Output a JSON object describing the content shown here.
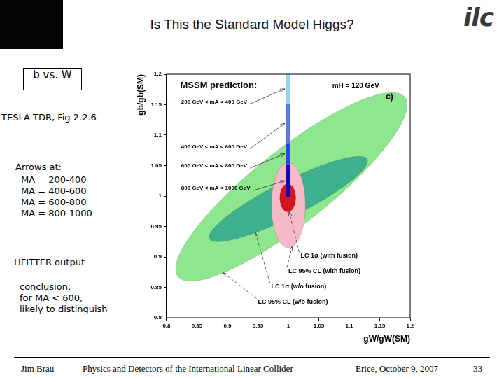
{
  "page": {
    "title": "Is This the Standard Model Higgs?",
    "logo_text": "ilc",
    "boxed_label": "b vs. W",
    "source": "TESLA TDR, Fig 2.2.6",
    "arrows_heading": "Arrows at:",
    "arrows": [
      "MA = 200-400",
      "MA = 400-600",
      "MA = 600-800",
      "MA = 800-1000"
    ],
    "output": "HFITTER output",
    "conclusion": [
      "conclusion:",
      "for MA < 600,",
      "likely to distinguish"
    ],
    "footer": {
      "left": "Jim Brau",
      "center": "Physics and Detectors of the International Linear Collider",
      "right": "Erice, October 9, 2007",
      "page": "33"
    }
  },
  "chart_data": {
    "type": "scatter",
    "x_label": "gW/gW(SM)",
    "y_label": "gb/gb(SM)",
    "xlim": [
      0.8,
      1.2
    ],
    "xticks": [
      0.8,
      0.85,
      0.9,
      0.95,
      1,
      1.05,
      1.1,
      1.15,
      1.2
    ],
    "ylim": [
      0.8,
      1.2
    ],
    "yticks": [
      0.8,
      0.85,
      0.9,
      0.95,
      1,
      1.05,
      1.1,
      1.15,
      1.2
    ],
    "grid": false,
    "annotations": [
      "MSSM prediction:",
      "mH = 120 GeV",
      "c)"
    ],
    "series": [
      {
        "name": "LC 95% CL (w/o fusion)",
        "type": "ellipse",
        "color": "#8ee68e",
        "x_center": 1.005,
        "y_center": 1.015,
        "x_halfwidth": 0.19,
        "y_halfwidth": 0.155,
        "correlation": 0.87
      },
      {
        "name": "LC 1σ (w/o fusion)",
        "type": "ellipse",
        "color": "#3fb08e",
        "x_center": 1.0,
        "y_center": 0.995,
        "x_halfwidth": 0.13,
        "y_halfwidth": 0.07,
        "correlation": 0.89
      },
      {
        "name": "LC 95% CL (with fusion)",
        "type": "ellipse",
        "color": "#f7b8c8",
        "x_center": 1.0,
        "y_center": 0.985,
        "x_halfwidth": 0.028,
        "y_halfwidth": 0.07,
        "correlation": 0
      },
      {
        "name": "LC 1σ (with fusion)",
        "type": "ellipse",
        "color": "#d4141e",
        "x_center": 0.999,
        "y_center": 0.997,
        "x_halfwidth": 0.013,
        "y_halfwidth": 0.023,
        "correlation": 0
      },
      {
        "name": "200 GeV < mA < 400 GeV",
        "type": "segment",
        "color": "#8fd3f0",
        "x": 1,
        "y_from": 1.152,
        "y_to": 1.2
      },
      {
        "name": "400 GeV < mA < 600 GeV",
        "type": "segment",
        "color": "#5a78e6",
        "x": 1,
        "y_from": 1.087,
        "y_to": 1.152
      },
      {
        "name": "600 GeV < mA < 800 GeV",
        "type": "segment",
        "color": "#2a44f0",
        "x": 1,
        "y_from": 1.052,
        "y_to": 1.087
      },
      {
        "name": "800 GeV < mA < 1000 GeV",
        "type": "segment",
        "color": "#0a0ab8",
        "x": 1,
        "y_from": 0.998,
        "y_to": 1.052
      }
    ]
  }
}
